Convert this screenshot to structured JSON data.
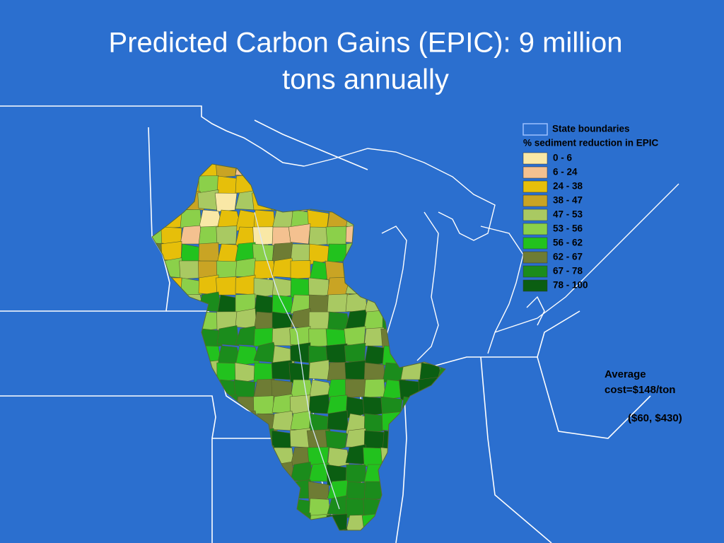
{
  "title_lines": [
    "Predicted Carbon Gains (EPIC): 9 million",
    "tons annually"
  ],
  "legend": {
    "boundary_label": "State boundaries",
    "heading": "% sediment reduction in EPIC",
    "classes": [
      {
        "label": "0 - 6",
        "color": "#f9e8a6"
      },
      {
        "label": "6 - 24",
        "color": "#f4c190"
      },
      {
        "label": "24 - 38",
        "color": "#e6bf0a"
      },
      {
        "label": "38 - 47",
        "color": "#c9a424"
      },
      {
        "label": "47 - 53",
        "color": "#a9c962"
      },
      {
        "label": "53 - 56",
        "color": "#8bd04a"
      },
      {
        "label": "56 - 62",
        "color": "#22c21e"
      },
      {
        "label": "62 - 67",
        "color": "#6e7c34"
      },
      {
        "label": "67 - 78",
        "color": "#1b8c1c"
      },
      {
        "label": "78 - 100",
        "color": "#0b5e12"
      }
    ]
  },
  "annotation": {
    "lines": [
      "Average",
      "cost=$148/ton"
    ],
    "range": "($60, $430)"
  }
}
